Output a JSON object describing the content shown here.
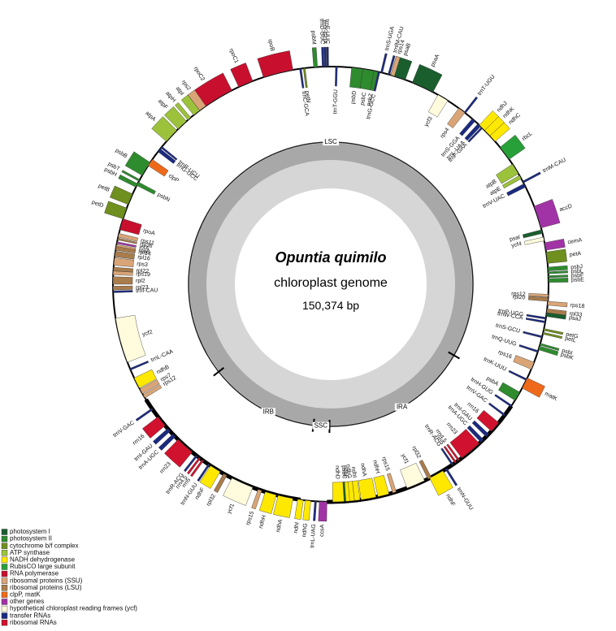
{
  "title": "Opuntia quimilo",
  "subtitle": "chloroplast genome",
  "size": "150,374 bp",
  "regions": [
    "LSC",
    "IRA",
    "SSC",
    "IRB"
  ],
  "groups": [
    {
      "label": "photosystem I",
      "color": "#1a5e2e",
      "genes": [
        "psaB",
        "psaA",
        "psaI",
        "psaJ",
        "psaC"
      ]
    },
    {
      "label": "photosystem II",
      "color": "#2e8b2e",
      "genes": [
        "psbM",
        "psbD",
        "psbC",
        "psbZ",
        "psbJ",
        "psbL",
        "psbF",
        "psbE",
        "psbI",
        "psbK",
        "psbA",
        "psbH",
        "psbN",
        "psbT",
        "psbB"
      ]
    },
    {
      "label": "cytochrome b/f complex",
      "color": "#6f8f1e",
      "genes": [
        "petN",
        "petA",
        "petG",
        "petL",
        "petD",
        "petB"
      ]
    },
    {
      "label": "ATP synthase",
      "color": "#9cc23c",
      "genes": [
        "atpB",
        "atpE",
        "atpA",
        "atpF",
        "atpH",
        "atpI"
      ]
    },
    {
      "label": "NADH dehydrogenase",
      "color": "#ffe800",
      "genes": [
        "ndhJ",
        "ndhK",
        "ndhC",
        "ndhF",
        "ndhH",
        "ndhA",
        "ndhI",
        "ndhG",
        "ndhE",
        "ndhD",
        "ndhG",
        "ndhI",
        "ndhA",
        "ndhH",
        "ndhF",
        "ndhB"
      ]
    },
    {
      "label": "RubisCO large subunit",
      "color": "#28a038",
      "genes": [
        "rbcL"
      ]
    },
    {
      "label": "RNA polymerase",
      "color": "#c8102e",
      "genes": [
        "rpoA",
        "rpoC2",
        "rpoC1",
        "rpoB"
      ]
    },
    {
      "label": "ribosomal proteins (SSU)",
      "color": "#d9a577",
      "genes": [
        "rps14",
        "rps4",
        "rps12",
        "rps18",
        "rps16",
        "rps15",
        "rps15",
        "rps12",
        "rps7",
        "rps19",
        "rps3",
        "rps8",
        "rps11",
        "rps2"
      ]
    },
    {
      "label": "ribosomal proteins (LSU)",
      "color": "#a97c4c",
      "genes": [
        "rpl33",
        "rpl20",
        "rpl32",
        "rpl32",
        "rpl23",
        "rpl2",
        "rpl22",
        "rpl16",
        "rpl14",
        "rpl36"
      ]
    },
    {
      "label": "clpP, matK",
      "color": "#ee6a1a",
      "genes": [
        "matK",
        "clpP"
      ]
    },
    {
      "label": "other genes",
      "color": "#a233a6",
      "genes": [
        "accD",
        "cemA",
        "ccsA",
        "infA"
      ]
    },
    {
      "label": "hypothetical chloroplast reading frames (ycf)",
      "color": "#fffbdc",
      "genes": [
        "ycf3",
        "ycf4",
        "ycf1",
        "ycf1",
        "ycf2"
      ]
    },
    {
      "label": "transfer RNAs",
      "color": "#1b2a80",
      "genes": [
        "trnD-GUC",
        "trnY-GUA",
        "trnE-UUC",
        "trnT-GGU",
        "trnG-GCC",
        "trnS-UGA",
        "trnfM-CAU",
        "trnT-UGU",
        "trnS-GGA",
        "trnL-UAA",
        "trnF-GAA",
        "trnM-CAU",
        "trnV-UAC",
        "trnP-UGG",
        "trnW-CCA",
        "trnS-GCU",
        "trnQ-UUG",
        "trnK-UUU",
        "trnH-GUG",
        "trnV-GAC",
        "trnI-GAU",
        "trnA-UGC",
        "trnR-ACG",
        "trnN-GUU",
        "trnL-UAG",
        "trnN-GUU",
        "trnR-ACG",
        "trnA-UGC",
        "trnI-GAU",
        "trnV-GAC",
        "trnL-CAA",
        "trnI-CAU",
        "trnG-UCC",
        "trnR-UCU",
        "trnC-GCA"
      ]
    },
    {
      "label": "ribosomal RNAs",
      "color": "#d0122e",
      "genes": [
        "rrn16",
        "rrn23",
        "rrn4.5",
        "rrn5",
        "rrn5",
        "rrn4.5",
        "rrn23",
        "rrn16"
      ]
    }
  ]
}
